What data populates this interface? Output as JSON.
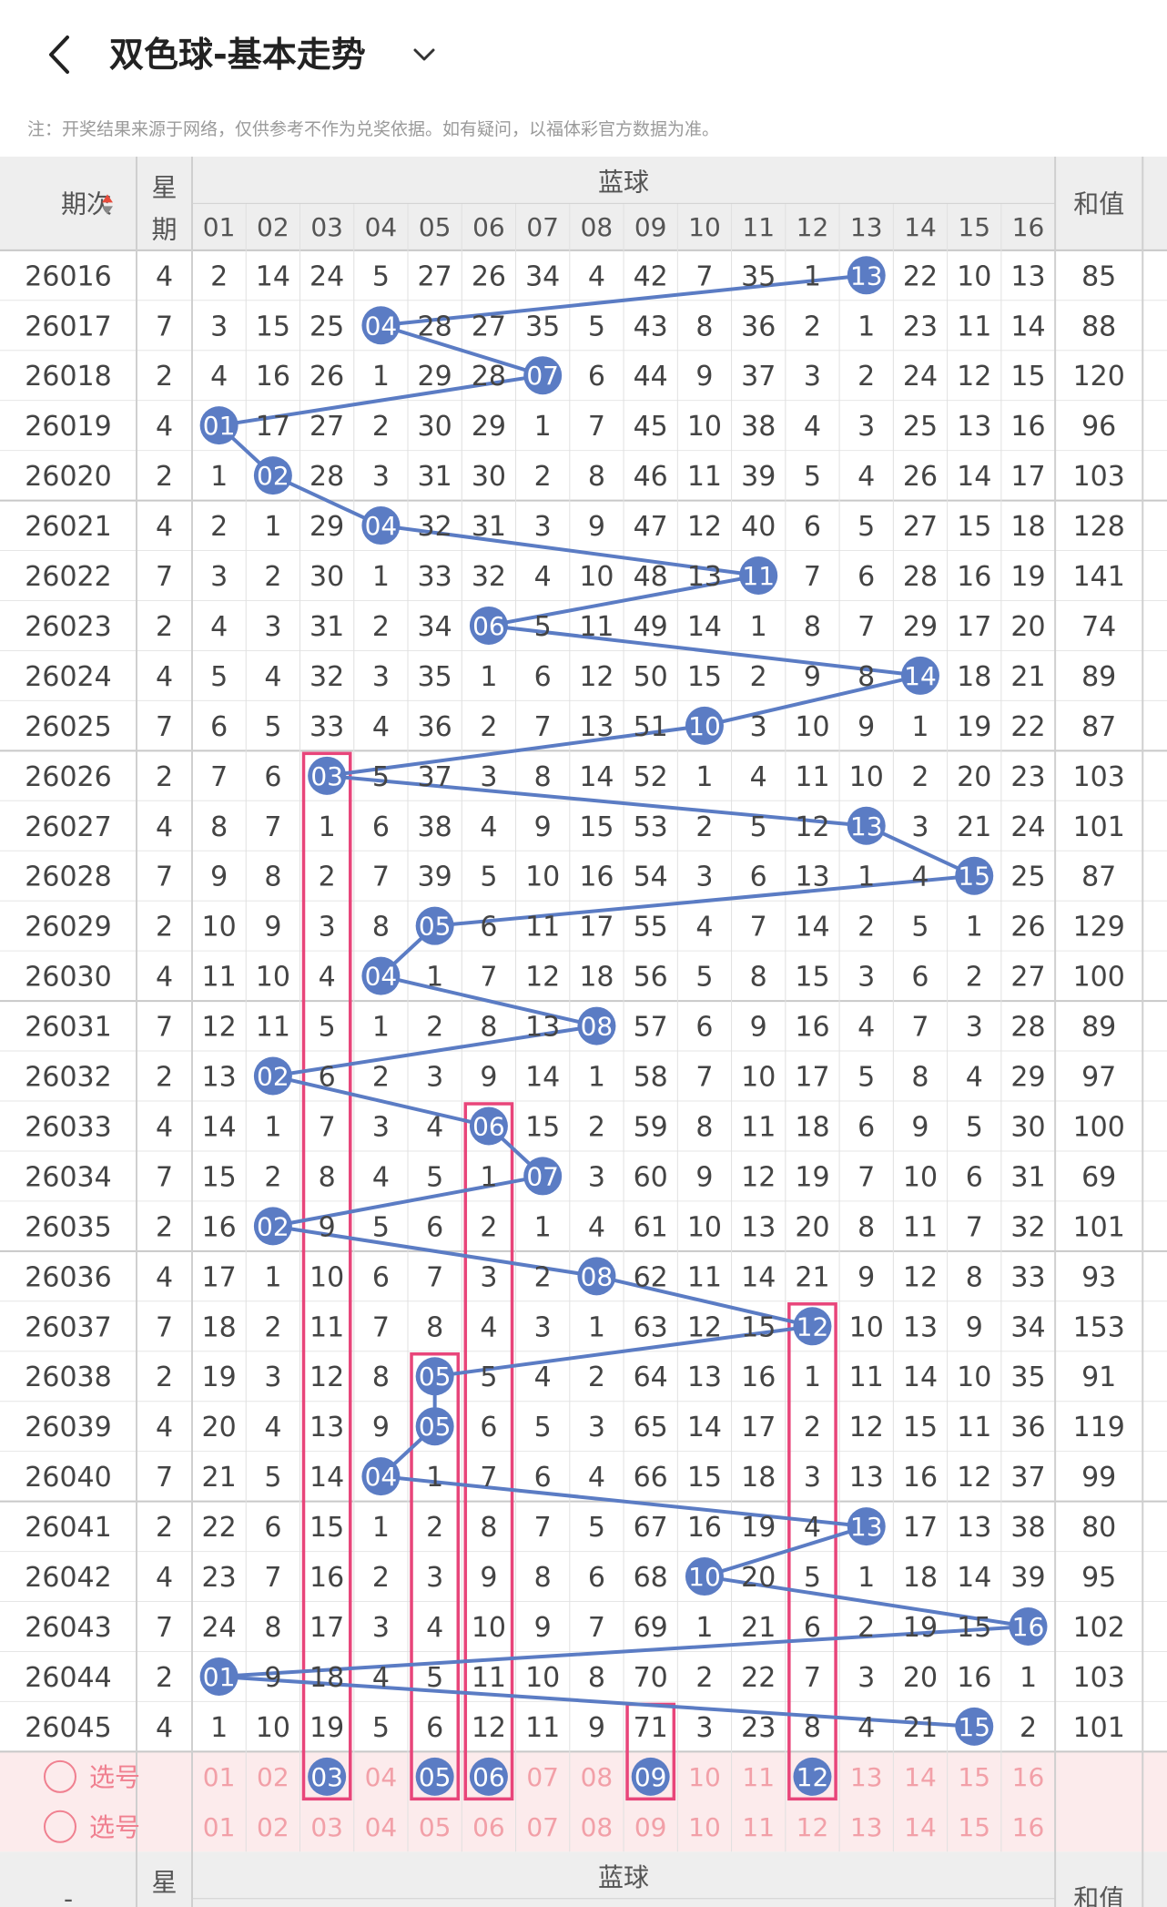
{
  "header": {
    "title": "双色球-基本走势"
  },
  "notice": "注：开奖结果来源于网络，仅供参考不作为兑奖依据。如有疑问，以福体彩官方数据为准。",
  "table": {
    "col_period": "期次",
    "col_week": "星期",
    "group_label": "蓝球",
    "col_sum": "和值",
    "numbers": [
      "01",
      "02",
      "03",
      "04",
      "05",
      "06",
      "07",
      "08",
      "09",
      "10",
      "11",
      "12",
      "13",
      "14",
      "15",
      "16"
    ]
  },
  "colors": {
    "ball": "#5b7cc4",
    "line": "#5b7cc4",
    "highlight_box": "#e8457a",
    "select_row_bg": "#fcebec"
  },
  "rows": [
    {
      "period": "26016",
      "week": "4",
      "sum": "85",
      "cells": [
        "2",
        "14",
        "24",
        "5",
        "27",
        "26",
        "34",
        "4",
        "42",
        "7",
        "35",
        "1",
        "13",
        "22",
        "10",
        "13"
      ],
      "hit": 13
    },
    {
      "period": "26017",
      "week": "7",
      "sum": "88",
      "cells": [
        "3",
        "15",
        "25",
        "04",
        "28",
        "27",
        "35",
        "5",
        "43",
        "8",
        "36",
        "2",
        "1",
        "23",
        "11",
        "14"
      ],
      "hit": 4
    },
    {
      "period": "26018",
      "week": "2",
      "sum": "120",
      "cells": [
        "4",
        "16",
        "26",
        "1",
        "29",
        "28",
        "07",
        "6",
        "44",
        "9",
        "37",
        "3",
        "2",
        "24",
        "12",
        "15"
      ],
      "hit": 7
    },
    {
      "period": "26019",
      "week": "4",
      "sum": "96",
      "cells": [
        "01",
        "17",
        "27",
        "2",
        "30",
        "29",
        "1",
        "7",
        "45",
        "10",
        "38",
        "4",
        "3",
        "25",
        "13",
        "16"
      ],
      "hit": 1
    },
    {
      "period": "26020",
      "week": "2",
      "sum": "103",
      "cells": [
        "1",
        "02",
        "28",
        "3",
        "31",
        "30",
        "2",
        "8",
        "46",
        "11",
        "39",
        "5",
        "4",
        "26",
        "14",
        "17"
      ],
      "hit": 2
    },
    {
      "period": "26021",
      "week": "4",
      "sum": "128",
      "cells": [
        "2",
        "1",
        "29",
        "04",
        "32",
        "31",
        "3",
        "9",
        "47",
        "12",
        "40",
        "6",
        "5",
        "27",
        "15",
        "18"
      ],
      "hit": 4
    },
    {
      "period": "26022",
      "week": "7",
      "sum": "141",
      "cells": [
        "3",
        "2",
        "30",
        "1",
        "33",
        "32",
        "4",
        "10",
        "48",
        "13",
        "11",
        "7",
        "6",
        "28",
        "16",
        "19"
      ],
      "hit": 11
    },
    {
      "period": "26023",
      "week": "2",
      "sum": "74",
      "cells": [
        "4",
        "3",
        "31",
        "2",
        "34",
        "06",
        "5",
        "11",
        "49",
        "14",
        "1",
        "8",
        "7",
        "29",
        "17",
        "20"
      ],
      "hit": 6
    },
    {
      "period": "26024",
      "week": "4",
      "sum": "89",
      "cells": [
        "5",
        "4",
        "32",
        "3",
        "35",
        "1",
        "6",
        "12",
        "50",
        "15",
        "2",
        "9",
        "8",
        "14",
        "18",
        "21"
      ],
      "hit": 14
    },
    {
      "period": "26025",
      "week": "7",
      "sum": "87",
      "cells": [
        "6",
        "5",
        "33",
        "4",
        "36",
        "2",
        "7",
        "13",
        "51",
        "10",
        "3",
        "10",
        "9",
        "1",
        "19",
        "22"
      ],
      "hit": 10
    },
    {
      "period": "26026",
      "week": "2",
      "sum": "103",
      "cells": [
        "7",
        "6",
        "03",
        "5",
        "37",
        "3",
        "8",
        "14",
        "52",
        "1",
        "4",
        "11",
        "10",
        "2",
        "20",
        "23"
      ],
      "hit": 3
    },
    {
      "period": "26027",
      "week": "4",
      "sum": "101",
      "cells": [
        "8",
        "7",
        "1",
        "6",
        "38",
        "4",
        "9",
        "15",
        "53",
        "2",
        "5",
        "12",
        "13",
        "3",
        "21",
        "24"
      ],
      "hit": 13
    },
    {
      "period": "26028",
      "week": "7",
      "sum": "87",
      "cells": [
        "9",
        "8",
        "2",
        "7",
        "39",
        "5",
        "10",
        "16",
        "54",
        "3",
        "6",
        "13",
        "1",
        "4",
        "15",
        "25"
      ],
      "hit": 15
    },
    {
      "period": "26029",
      "week": "2",
      "sum": "129",
      "cells": [
        "10",
        "9",
        "3",
        "8",
        "05",
        "6",
        "11",
        "17",
        "55",
        "4",
        "7",
        "14",
        "2",
        "5",
        "1",
        "26"
      ],
      "hit": 5
    },
    {
      "period": "26030",
      "week": "4",
      "sum": "100",
      "cells": [
        "11",
        "10",
        "4",
        "04",
        "1",
        "7",
        "12",
        "18",
        "56",
        "5",
        "8",
        "15",
        "3",
        "6",
        "2",
        "27"
      ],
      "hit": 4
    },
    {
      "period": "26031",
      "week": "7",
      "sum": "89",
      "cells": [
        "12",
        "11",
        "5",
        "1",
        "2",
        "8",
        "13",
        "08",
        "57",
        "6",
        "9",
        "16",
        "4",
        "7",
        "3",
        "28"
      ],
      "hit": 8
    },
    {
      "period": "26032",
      "week": "2",
      "sum": "97",
      "cells": [
        "13",
        "02",
        "6",
        "2",
        "3",
        "9",
        "14",
        "1",
        "58",
        "7",
        "10",
        "17",
        "5",
        "8",
        "4",
        "29"
      ],
      "hit": 2
    },
    {
      "period": "26033",
      "week": "4",
      "sum": "100",
      "cells": [
        "14",
        "1",
        "7",
        "3",
        "4",
        "06",
        "15",
        "2",
        "59",
        "8",
        "11",
        "18",
        "6",
        "9",
        "5",
        "30"
      ],
      "hit": 6
    },
    {
      "period": "26034",
      "week": "7",
      "sum": "69",
      "cells": [
        "15",
        "2",
        "8",
        "4",
        "5",
        "1",
        "07",
        "3",
        "60",
        "9",
        "12",
        "19",
        "7",
        "10",
        "6",
        "31"
      ],
      "hit": 7
    },
    {
      "period": "26035",
      "week": "2",
      "sum": "101",
      "cells": [
        "16",
        "02",
        "9",
        "5",
        "6",
        "2",
        "1",
        "4",
        "61",
        "10",
        "13",
        "20",
        "8",
        "11",
        "7",
        "32"
      ],
      "hit": 2
    },
    {
      "period": "26036",
      "week": "4",
      "sum": "93",
      "cells": [
        "17",
        "1",
        "10",
        "6",
        "7",
        "3",
        "2",
        "08",
        "62",
        "11",
        "14",
        "21",
        "9",
        "12",
        "8",
        "33"
      ],
      "hit": 8
    },
    {
      "period": "26037",
      "week": "7",
      "sum": "153",
      "cells": [
        "18",
        "2",
        "11",
        "7",
        "8",
        "4",
        "3",
        "1",
        "63",
        "12",
        "15",
        "12",
        "10",
        "13",
        "9",
        "34"
      ],
      "hit": 12
    },
    {
      "period": "26038",
      "week": "2",
      "sum": "91",
      "cells": [
        "19",
        "3",
        "12",
        "8",
        "05",
        "5",
        "4",
        "2",
        "64",
        "13",
        "16",
        "1",
        "11",
        "14",
        "10",
        "35"
      ],
      "hit": 5
    },
    {
      "period": "26039",
      "week": "4",
      "sum": "119",
      "cells": [
        "20",
        "4",
        "13",
        "9",
        "05",
        "6",
        "5",
        "3",
        "65",
        "14",
        "17",
        "2",
        "12",
        "15",
        "11",
        "36"
      ],
      "hit": 5
    },
    {
      "period": "26040",
      "week": "7",
      "sum": "99",
      "cells": [
        "21",
        "5",
        "14",
        "04",
        "1",
        "7",
        "6",
        "4",
        "66",
        "15",
        "18",
        "3",
        "13",
        "16",
        "12",
        "37"
      ],
      "hit": 4
    },
    {
      "period": "26041",
      "week": "2",
      "sum": "80",
      "cells": [
        "22",
        "6",
        "15",
        "1",
        "2",
        "8",
        "7",
        "5",
        "67",
        "16",
        "19",
        "4",
        "13",
        "17",
        "13",
        "38"
      ],
      "hit": 13
    },
    {
      "period": "26042",
      "week": "4",
      "sum": "95",
      "cells": [
        "23",
        "7",
        "16",
        "2",
        "3",
        "9",
        "8",
        "6",
        "68",
        "10",
        "20",
        "5",
        "1",
        "18",
        "14",
        "39"
      ],
      "hit": 10
    },
    {
      "period": "26043",
      "week": "7",
      "sum": "102",
      "cells": [
        "24",
        "8",
        "17",
        "3",
        "4",
        "10",
        "9",
        "7",
        "69",
        "1",
        "21",
        "6",
        "2",
        "19",
        "15",
        "16"
      ],
      "hit": 16
    },
    {
      "period": "26044",
      "week": "2",
      "sum": "103",
      "cells": [
        "01",
        "9",
        "18",
        "4",
        "5",
        "11",
        "10",
        "8",
        "70",
        "2",
        "22",
        "7",
        "3",
        "20",
        "16",
        "1"
      ],
      "hit": 1
    },
    {
      "period": "26045",
      "week": "4",
      "sum": "101",
      "cells": [
        "1",
        "10",
        "19",
        "5",
        "6",
        "12",
        "11",
        "9",
        "71",
        "3",
        "23",
        "8",
        "4",
        "21",
        "15",
        "2"
      ],
      "hit": 15
    }
  ],
  "select_rows": [
    {
      "label": "选号",
      "selected": [
        3,
        5,
        6,
        9,
        12
      ]
    },
    {
      "label": "选号",
      "selected": []
    }
  ],
  "footer_header": {
    "col_period": "-",
    "col_week": "星期",
    "group_label": "蓝球",
    "col_sum": "和值"
  },
  "highlight_columns": [
    {
      "col": 3,
      "from": 10,
      "to": 30
    },
    {
      "col": 5,
      "from": 22,
      "to": 30
    },
    {
      "col": 6,
      "from": 17,
      "to": 30
    },
    {
      "col": 9,
      "from": 29,
      "to": 30
    },
    {
      "col": 12,
      "from": 21,
      "to": 30
    }
  ]
}
